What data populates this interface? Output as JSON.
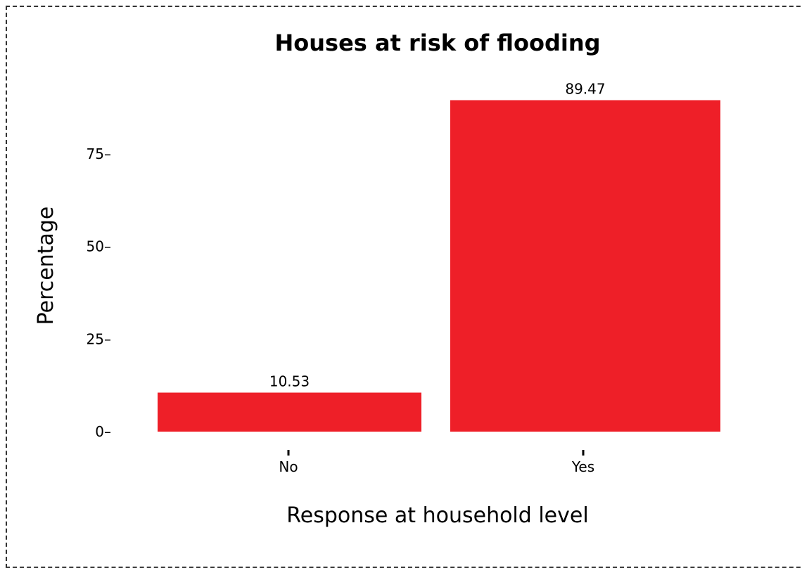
{
  "chart_data": {
    "type": "bar",
    "title": "Houses at risk of flooding",
    "xlabel": "Response at household level",
    "ylabel": "Percentage",
    "categories": [
      "No",
      "Yes"
    ],
    "values": [
      10.53,
      89.47
    ],
    "data_labels": [
      "10.53",
      "89.47"
    ],
    "yticks": [
      "0",
      "25",
      "50",
      "75"
    ],
    "ylim": [
      0,
      92
    ],
    "bar_color": "#ee1f28",
    "grid": false,
    "legend": "none"
  }
}
